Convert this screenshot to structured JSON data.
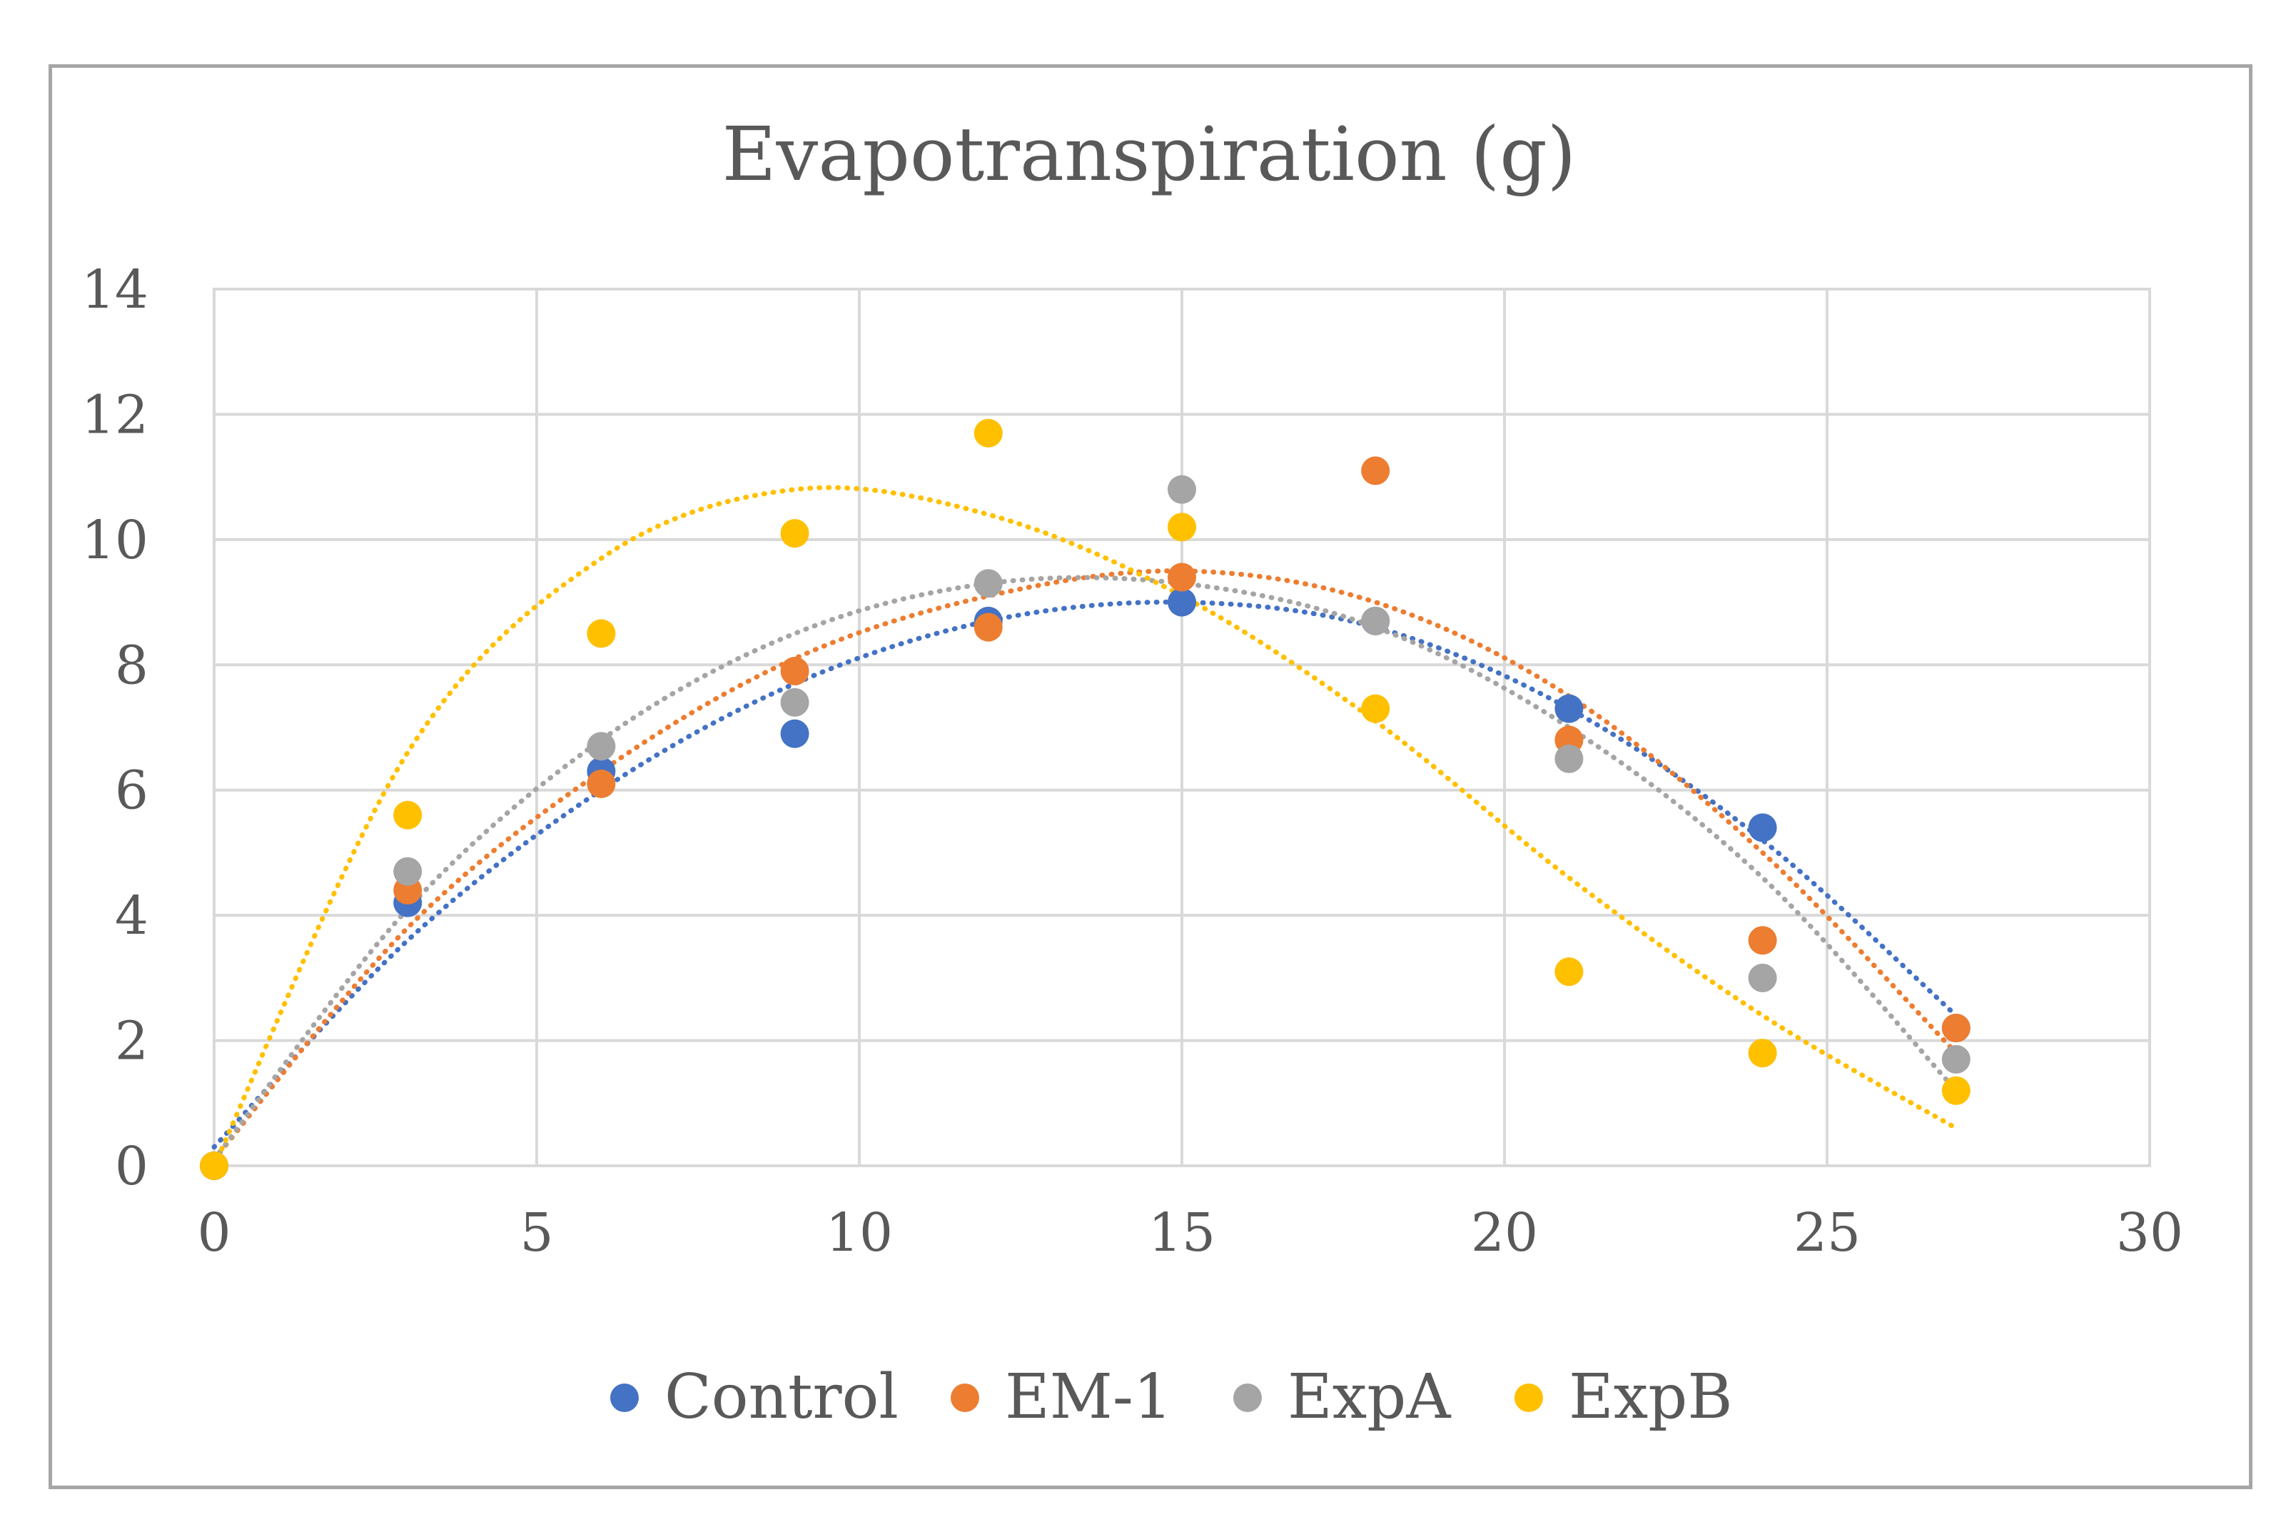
{
  "chart_data": {
    "type": "scatter",
    "title": "Evapotranspiration (g)",
    "xlabel": "",
    "ylabel": "",
    "xlim": [
      0,
      30
    ],
    "ylim": [
      0,
      14
    ],
    "x_ticks": [
      0,
      5,
      10,
      15,
      20,
      25,
      30
    ],
    "y_ticks": [
      0,
      2,
      4,
      6,
      8,
      10,
      12,
      14
    ],
    "x_tick_labels": [
      "0",
      "5",
      "10",
      "15",
      "20",
      "25",
      "30"
    ],
    "y_tick_labels": [
      "0",
      "2",
      "4",
      "6",
      "8",
      "10",
      "12",
      "14"
    ],
    "grid": true,
    "legend_position": "bottom",
    "trendline": "polynomial, dotted",
    "series": [
      {
        "name": "Control",
        "color": "#4472c4",
        "x": [
          0,
          3,
          6,
          9,
          12,
          15,
          18,
          21,
          24,
          27
        ],
        "y": [
          0,
          4.2,
          6.3,
          6.9,
          8.7,
          9.0,
          8.7,
          7.3,
          5.4,
          2.2
        ],
        "trend_y": [
          0.3,
          3.6,
          6.0,
          7.7,
          8.7,
          9.0,
          8.6,
          7.3,
          5.2,
          2.4
        ]
      },
      {
        "name": "EM-1",
        "color": "#ed7d31",
        "x": [
          0,
          3,
          6,
          9,
          12,
          15,
          18,
          21,
          24,
          27
        ],
        "y": [
          0,
          4.4,
          6.1,
          7.9,
          8.6,
          9.4,
          11.1,
          6.8,
          3.6,
          2.2
        ],
        "trend_y": [
          0.1,
          3.8,
          6.3,
          8.1,
          9.1,
          9.5,
          9.0,
          7.5,
          5.0,
          1.8
        ]
      },
      {
        "name": "ExpA",
        "color": "#a5a5a5",
        "x": [
          0,
          3,
          6,
          9,
          12,
          15,
          18,
          21,
          24,
          27
        ],
        "y": [
          0,
          4.7,
          6.7,
          7.4,
          9.3,
          10.8,
          8.7,
          6.5,
          3.0,
          1.7
        ],
        "trend_y": [
          0.1,
          4.1,
          6.8,
          8.5,
          9.3,
          9.3,
          8.6,
          7.0,
          4.6,
          1.2
        ]
      },
      {
        "name": "ExpB",
        "color": "#ffc000",
        "x": [
          0,
          3,
          6,
          9,
          12,
          15,
          18,
          21,
          24,
          27
        ],
        "y": [
          0,
          5.6,
          8.5,
          10.1,
          11.7,
          10.2,
          7.3,
          3.1,
          1.8,
          1.2
        ],
        "trend_y": [
          0.0,
          6.6,
          9.7,
          10.8,
          10.4,
          9.1,
          7.1,
          4.6,
          2.4,
          0.6
        ]
      }
    ]
  }
}
